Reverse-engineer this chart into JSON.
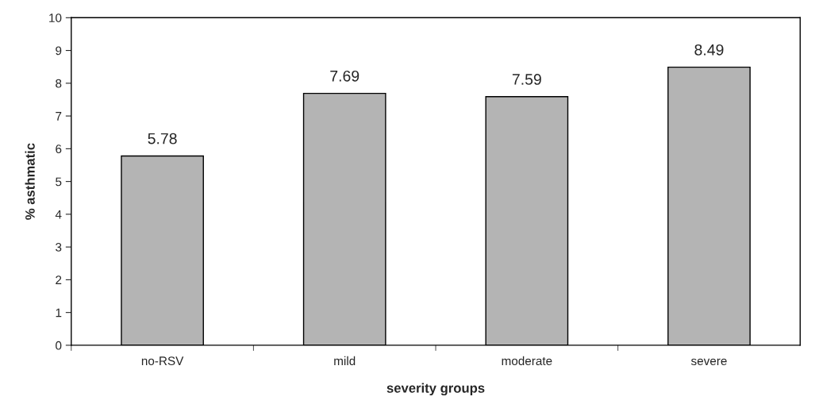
{
  "chart_data": {
    "type": "bar",
    "xlabel": "severity groups",
    "ylabel": "% asthmatic",
    "categories": [
      "no-RSV",
      "mild",
      "moderate",
      "severe"
    ],
    "values": [
      5.78,
      7.69,
      7.59,
      8.49
    ],
    "color": "#b4b4b4",
    "ylim": [
      0,
      10
    ],
    "yticks": [
      0,
      1,
      2,
      3,
      4,
      5,
      6,
      7,
      8,
      9,
      10
    ],
    "data_labels": true,
    "grid": false,
    "legend": false
  }
}
